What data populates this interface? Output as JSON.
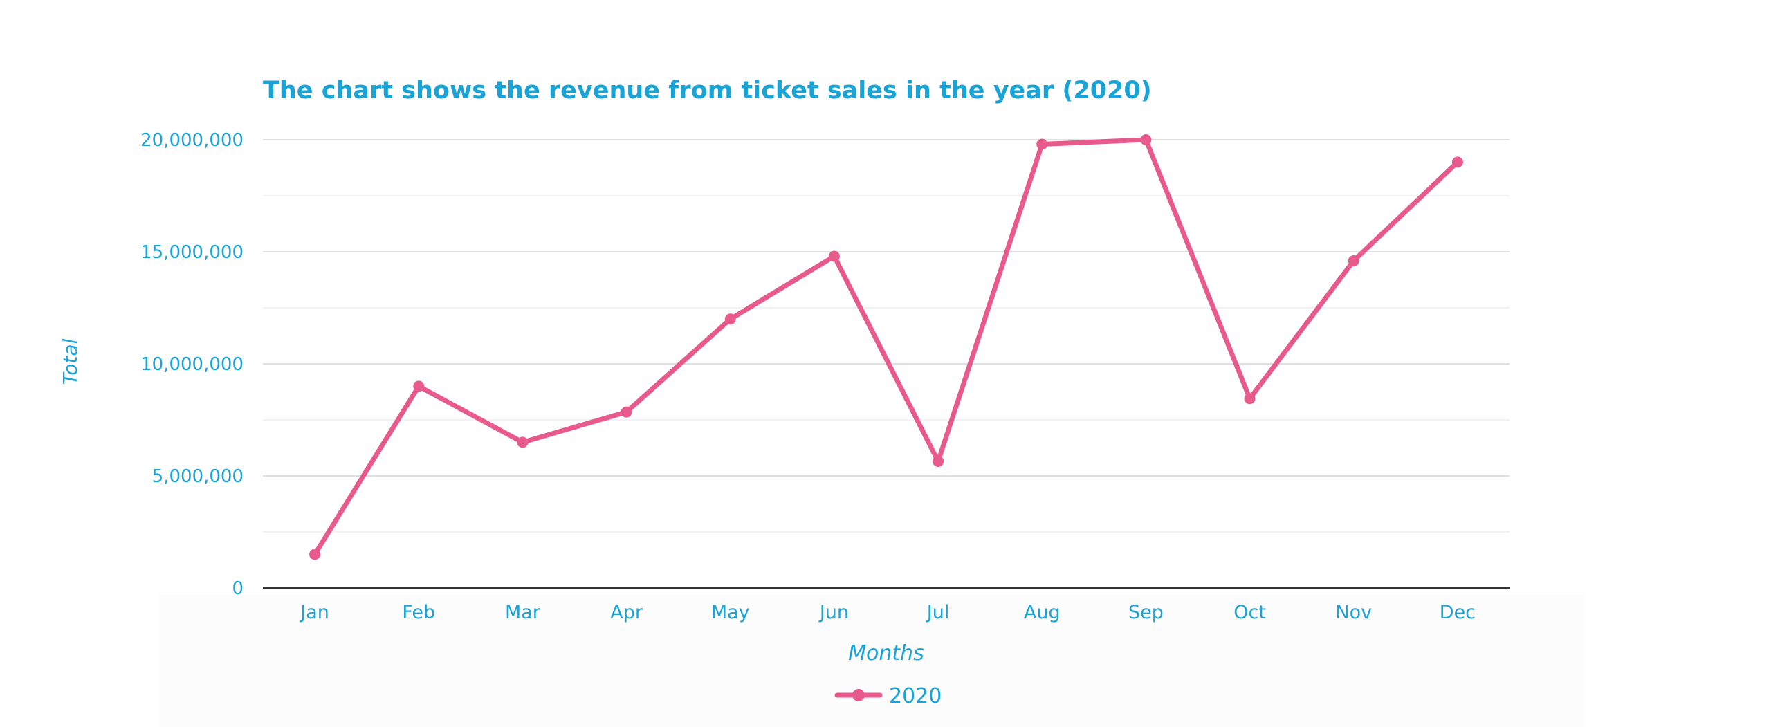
{
  "colors": {
    "accent": "#1aa3d6",
    "series": "#e85a8c",
    "grid": "#d6d6d6",
    "grid_minor": "#ebebeb",
    "axis": "#333333"
  },
  "chart_data": {
    "type": "line",
    "title": "The chart shows the revenue from ticket sales in the year (2020)",
    "xlabel": "Months",
    "ylabel": "Total",
    "categories": [
      "Jan",
      "Feb",
      "Mar",
      "Apr",
      "May",
      "Jun",
      "Jul",
      "Aug",
      "Sep",
      "Oct",
      "Nov",
      "Dec"
    ],
    "series": [
      {
        "name": "2020",
        "values": [
          1500000,
          9000000,
          6500000,
          7850000,
          12000000,
          14800000,
          5650000,
          19800000,
          20000000,
          8450000,
          14600000,
          19000000
        ]
      }
    ],
    "ylim": [
      0,
      20000000
    ],
    "yticks": [
      0,
      5000000,
      10000000,
      15000000,
      20000000
    ],
    "ytick_labels": [
      "0",
      "5,000,000",
      "10,000,000",
      "15,000,000",
      "20,000,000"
    ],
    "grid": true,
    "legend_position": "bottom-center"
  }
}
